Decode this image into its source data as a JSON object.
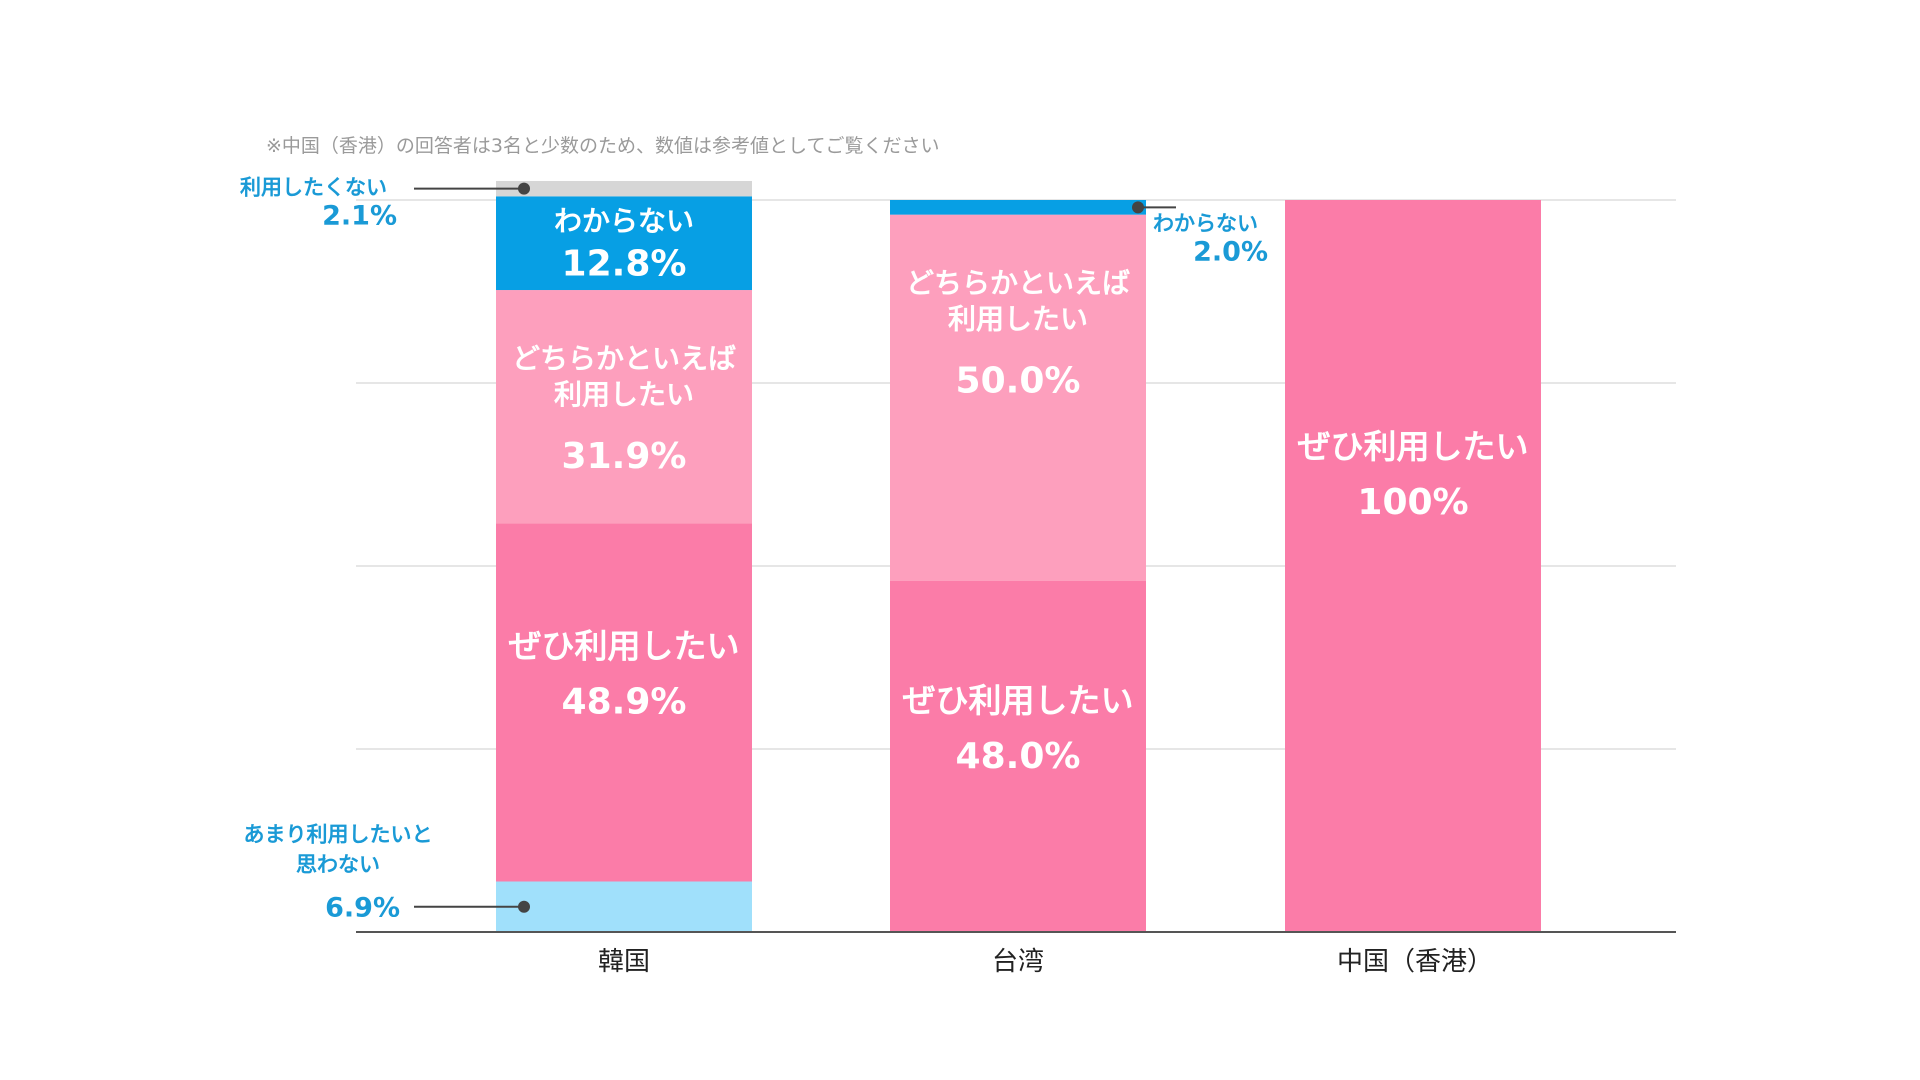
{
  "note": "※中国（香港）の回答者は3名と少数のため、数値は参考値としてご覧ください",
  "colors": {
    "zehi": "#fb7ca8",
    "dochiraka": "#fd9fbd",
    "amari": "#a0e0fb",
    "riyou_shitakunai": "#d6d6d6",
    "wakaranai": "#079fe4",
    "callout_text": "#1a9ad6",
    "grid": "#dddddd",
    "axis": "#555555"
  },
  "chart_data": {
    "type": "bar",
    "stacked": true,
    "normalized_percent": true,
    "categories": [
      "韓国",
      "台湾",
      "中国（香港）"
    ],
    "ylim": [
      0,
      100
    ],
    "grid": true,
    "series": [
      {
        "key": "amari",
        "name": "あまり利用したいと思わない",
        "values": [
          6.9,
          0,
          0
        ]
      },
      {
        "key": "zehi",
        "name": "ぜひ利用したい",
        "values": [
          48.9,
          48.0,
          100
        ]
      },
      {
        "key": "dochiraka",
        "name": "どちらかといえば利用したい",
        "values": [
          31.9,
          50.0,
          0
        ]
      },
      {
        "key": "wakaranai",
        "name": "わからない",
        "values": [
          12.8,
          2.0,
          0
        ]
      },
      {
        "key": "riyou_shitakunai",
        "name": "利用したくない",
        "values": [
          2.1,
          0,
          0
        ]
      }
    ],
    "inner_labels": [
      {
        "category": 0,
        "series": "wakaranai",
        "lines": [
          "わからない"
        ],
        "value_text": "12.8%"
      },
      {
        "category": 0,
        "series": "dochiraka",
        "lines": [
          "どちらかといえば",
          "利用したい"
        ],
        "value_text": "31.9%"
      },
      {
        "category": 0,
        "series": "zehi",
        "lines": [
          "ぜひ利用したい"
        ],
        "value_text": "48.9%"
      },
      {
        "category": 1,
        "series": "dochiraka",
        "lines": [
          "どちらかといえば",
          "利用したい"
        ],
        "value_text": "50.0%"
      },
      {
        "category": 1,
        "series": "zehi",
        "lines": [
          "ぜひ利用したい"
        ],
        "value_text": "48.0%"
      },
      {
        "category": 2,
        "series": "zehi",
        "lines": [
          "ぜひ利用したい"
        ],
        "value_text": "100%"
      }
    ],
    "callouts": [
      {
        "category": 0,
        "series": "riyou_shitakunai",
        "side": "left",
        "lines": [
          "利用したくない"
        ],
        "value_text": "2.1%"
      },
      {
        "category": 0,
        "series": "amari",
        "side": "left",
        "lines": [
          "あまり利用したいと",
          "思わない"
        ],
        "value_text": "6.9%"
      },
      {
        "category": 1,
        "series": "wakaranai",
        "side": "right",
        "lines": [
          "わからない"
        ],
        "value_text": "2.0%"
      }
    ]
  }
}
